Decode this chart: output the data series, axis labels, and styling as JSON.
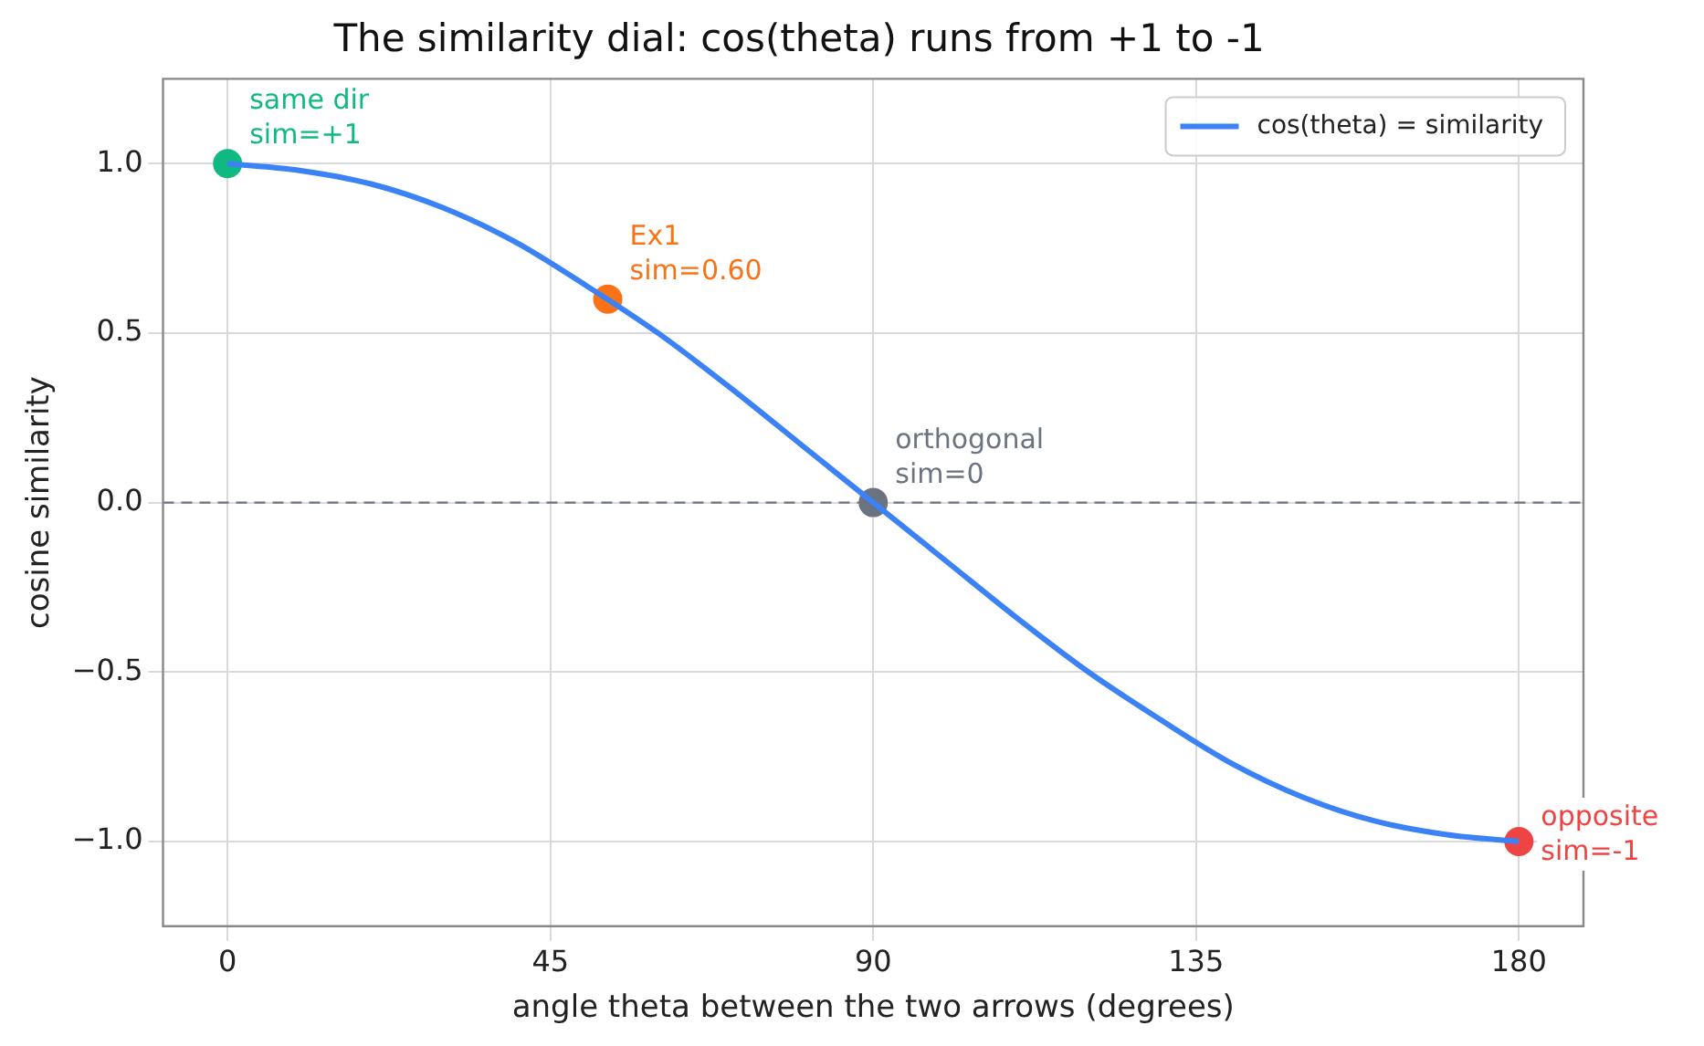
{
  "chart_data": {
    "type": "line",
    "title": "The similarity dial: cos(theta) runs from +1 to -1",
    "xlabel": "angle theta between the two arrows (degrees)",
    "ylabel": "cosine similarity",
    "xlim": [
      -9,
      189
    ],
    "xticks": [
      0,
      45,
      90,
      135,
      180
    ],
    "ylim": [
      -1.25,
      1.25
    ],
    "yticks": [
      {
        "value": -1,
        "label": "−1.0"
      },
      {
        "value": -0.5,
        "label": "−0.5"
      },
      {
        "value": 0,
        "label": "0.0"
      },
      {
        "value": 0.5,
        "label": "0.5"
      },
      {
        "value": 1,
        "label": "1.0"
      }
    ],
    "grid": true,
    "legend": "top right",
    "ref_lines": [
      {
        "axis": "y",
        "value": 0,
        "color": "#6b7280",
        "line_style": "dashed"
      }
    ],
    "series": [
      {
        "name": "cos(theta) = similarity",
        "color": "#3b82f6",
        "marker": "none",
        "line_style": "solid",
        "x": [
          0,
          10,
          20,
          30,
          40,
          50,
          60,
          70,
          80,
          90,
          100,
          110,
          120,
          130,
          140,
          150,
          160,
          170,
          180
        ],
        "values": [
          1,
          0.98,
          0.94,
          0.87,
          0.77,
          0.64,
          0.5,
          0.34,
          0.17,
          0,
          -0.17,
          -0.34,
          -0.5,
          -0.64,
          -0.77,
          -0.87,
          -0.94,
          -0.98,
          -1
        ]
      },
      {
        "type": "scatter",
        "marker": "circle",
        "x": [
          0,
          53,
          90,
          180
        ],
        "values": [
          1,
          0.6,
          0,
          -1
        ],
        "colors": [
          "#10b981",
          "#f97316",
          "#6b7280",
          "#ef4444"
        ],
        "value_labels": [
          "same dir\nsim=+1",
          "Ex1\nsim=0.60",
          "orthogonal\nsim=0",
          "opposite\nsim=-1"
        ]
      }
    ]
  }
}
